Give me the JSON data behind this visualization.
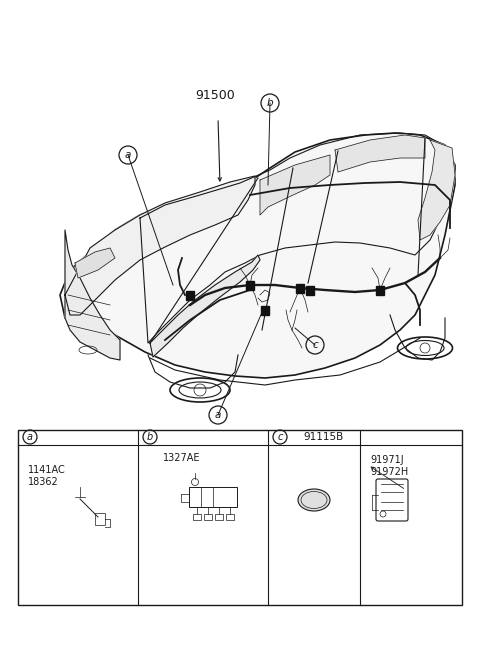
{
  "bg_color": "#ffffff",
  "lc": "#1a1a1a",
  "gray_light": "#cccccc",
  "gray_med": "#999999",
  "part_number_main": "91500",
  "label_a": "a",
  "label_b": "b",
  "label_c": "c",
  "part_a1": "1141AC",
  "part_a2": "18362",
  "part_b1": "1327AE",
  "part_c1": "91115B",
  "part_d1": "91971J",
  "part_d2": "91972H",
  "figw": 4.8,
  "figh": 6.55,
  "dpi": 100
}
